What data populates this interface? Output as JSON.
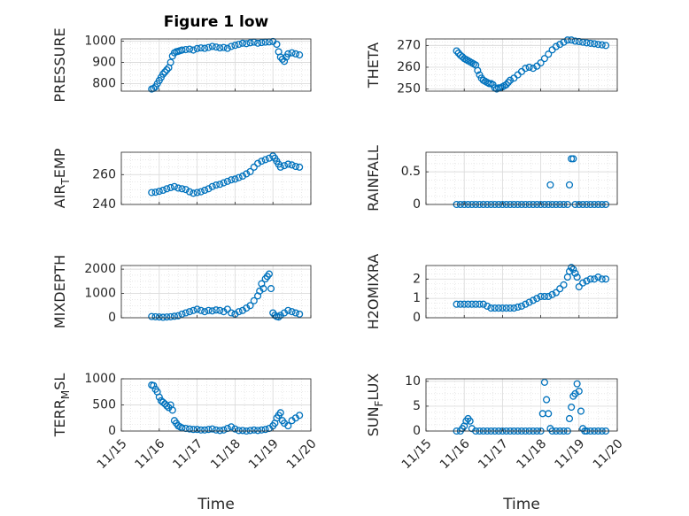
{
  "figure": {
    "title": "Figure 1 low"
  },
  "colors": {
    "marker": "#0072BD",
    "axis": "#262626",
    "grid": "#d9d9d9"
  },
  "chart_data": [
    {
      "type": "scatter",
      "ylabel": "PRESSURE",
      "title": "Figure 1 low",
      "xlabel": "",
      "xlim": [
        0,
        5
      ],
      "ylim": [
        765,
        1010
      ],
      "yticks": [
        800,
        900,
        1000
      ],
      "ytick_labels": [
        "800",
        "900",
        "1000"
      ],
      "xticks": [
        0,
        1,
        2,
        3,
        4,
        5
      ],
      "xtick_labels": [],
      "grid": true,
      "x": [
        0.8,
        0.85,
        0.9,
        0.95,
        1.0,
        1.05,
        1.1,
        1.15,
        1.2,
        1.25,
        1.3,
        1.35,
        1.4,
        1.45,
        1.5,
        1.55,
        1.6,
        1.7,
        1.8,
        1.9,
        2.0,
        2.1,
        2.2,
        2.3,
        2.4,
        2.5,
        2.6,
        2.7,
        2.8,
        2.9,
        3.0,
        3.1,
        3.2,
        3.3,
        3.4,
        3.5,
        3.6,
        3.7,
        3.8,
        3.9,
        4.0,
        4.1,
        4.15,
        4.2,
        4.25,
        4.3,
        4.35,
        4.4,
        4.5,
        4.6,
        4.7
      ],
      "y": [
        775,
        778,
        785,
        800,
        815,
        830,
        845,
        855,
        865,
        875,
        900,
        930,
        945,
        950,
        952,
        955,
        958,
        960,
        962,
        958,
        965,
        968,
        966,
        970,
        975,
        972,
        968,
        970,
        966,
        975,
        980,
        985,
        990,
        988,
        992,
        995,
        990,
        993,
        995,
        996,
        998,
        985,
        950,
        925,
        915,
        905,
        925,
        940,
        945,
        940,
        935
      ]
    },
    {
      "type": "scatter",
      "ylabel": "THETA",
      "xlabel": "",
      "xlim": [
        0,
        5
      ],
      "ylim": [
        249,
        273
      ],
      "yticks": [
        250,
        260,
        270
      ],
      "ytick_labels": [
        "250",
        "260",
        "270"
      ],
      "xticks": [
        0,
        1,
        2,
        3,
        4,
        5
      ],
      "xtick_labels": [],
      "grid": true,
      "x": [
        0.8,
        0.85,
        0.9,
        0.95,
        1.0,
        1.05,
        1.1,
        1.15,
        1.2,
        1.25,
        1.3,
        1.35,
        1.4,
        1.45,
        1.5,
        1.55,
        1.6,
        1.65,
        1.7,
        1.75,
        1.8,
        1.85,
        1.9,
        1.95,
        2.0,
        2.05,
        2.1,
        2.15,
        2.2,
        2.3,
        2.4,
        2.5,
        2.6,
        2.7,
        2.8,
        2.9,
        3.0,
        3.1,
        3.2,
        3.3,
        3.4,
        3.5,
        3.6,
        3.7,
        3.8,
        3.9,
        4.0,
        4.1,
        4.2,
        4.3,
        4.4,
        4.5,
        4.6,
        4.7
      ],
      "y": [
        267.5,
        266.5,
        265.5,
        264.8,
        264,
        263.5,
        263,
        262.5,
        262,
        261.5,
        261,
        258.5,
        256.5,
        255,
        254,
        253.5,
        253,
        252.5,
        252.5,
        252,
        250.5,
        250,
        250.5,
        250.5,
        251,
        251.5,
        252,
        253,
        254,
        255,
        256.5,
        258,
        259.5,
        260,
        259.5,
        260.5,
        262,
        264,
        266,
        268,
        269.5,
        270.5,
        271.5,
        272.5,
        272.5,
        272,
        271.8,
        271.5,
        271.2,
        271,
        270.8,
        270.5,
        270.3,
        270
      ]
    },
    {
      "type": "scatter",
      "ylabel": "AIR_TEMP",
      "xlabel": "",
      "xlim": [
        0,
        5
      ],
      "ylim": [
        240,
        275
      ],
      "yticks": [
        240,
        260
      ],
      "ytick_labels": [
        "240",
        "260"
      ],
      "xticks": [
        0,
        1,
        2,
        3,
        4,
        5
      ],
      "xtick_labels": [],
      "grid": true,
      "x": [
        0.8,
        0.9,
        1.0,
        1.1,
        1.2,
        1.3,
        1.4,
        1.5,
        1.6,
        1.7,
        1.8,
        1.9,
        2.0,
        2.1,
        2.2,
        2.3,
        2.4,
        2.5,
        2.6,
        2.7,
        2.8,
        2.9,
        3.0,
        3.1,
        3.2,
        3.3,
        3.4,
        3.5,
        3.6,
        3.7,
        3.8,
        3.9,
        4.0,
        4.05,
        4.1,
        4.15,
        4.2,
        4.3,
        4.4,
        4.5,
        4.6,
        4.7
      ],
      "y": [
        248,
        248.2,
        248.8,
        249.5,
        250.5,
        251.3,
        252,
        251,
        250.5,
        250,
        248.5,
        247.5,
        248,
        248.5,
        249.5,
        250.5,
        252,
        253,
        253.5,
        254.5,
        255.5,
        256.5,
        257,
        258,
        259,
        260.5,
        262,
        265,
        267.5,
        269,
        270,
        271,
        272.5,
        271,
        269,
        267,
        265,
        266,
        267,
        266.5,
        265.5,
        265
      ]
    },
    {
      "type": "scatter",
      "ylabel": "RAINFALL",
      "xlabel": "",
      "xlim": [
        0,
        5
      ],
      "ylim": [
        0,
        0.8
      ],
      "yticks": [
        0,
        0.5
      ],
      "ytick_labels": [
        "0",
        "0.5"
      ],
      "xticks": [
        0,
        1,
        2,
        3,
        4,
        5
      ],
      "xtick_labels": [],
      "grid": true,
      "x": [
        0.8,
        0.9,
        1.0,
        1.1,
        1.2,
        1.3,
        1.4,
        1.5,
        1.6,
        1.7,
        1.8,
        1.9,
        2.0,
        2.1,
        2.2,
        2.3,
        2.4,
        2.5,
        2.6,
        2.7,
        2.8,
        2.9,
        3.0,
        3.1,
        3.2,
        3.25,
        3.3,
        3.4,
        3.5,
        3.6,
        3.7,
        3.75,
        3.8,
        3.85,
        3.9,
        4.0,
        4.1,
        4.2,
        4.3,
        4.4,
        4.5,
        4.6,
        4.7
      ],
      "y": [
        0,
        0,
        0,
        0,
        0,
        0,
        0,
        0,
        0,
        0,
        0,
        0,
        0,
        0,
        0,
        0,
        0,
        0,
        0,
        0,
        0,
        0,
        0,
        0,
        0,
        0.3,
        0,
        0,
        0,
        0,
        0,
        0.3,
        0.7,
        0.7,
        0,
        0,
        0,
        0,
        0,
        0,
        0,
        0,
        0
      ]
    },
    {
      "type": "scatter",
      "ylabel": "MIXDEPTH",
      "xlabel": "",
      "xlim": [
        0,
        5
      ],
      "ylim": [
        0,
        2150
      ],
      "yticks": [
        0,
        1000,
        2000
      ],
      "ytick_labels": [
        "0",
        "1000",
        "2000"
      ],
      "xticks": [
        0,
        1,
        2,
        3,
        4,
        5
      ],
      "xtick_labels": [],
      "grid": true,
      "x": [
        0.8,
        0.9,
        1.0,
        1.1,
        1.2,
        1.3,
        1.4,
        1.5,
        1.6,
        1.7,
        1.8,
        1.9,
        2.0,
        2.1,
        2.2,
        2.3,
        2.4,
        2.5,
        2.6,
        2.7,
        2.8,
        2.9,
        3.0,
        3.1,
        3.2,
        3.3,
        3.4,
        3.5,
        3.6,
        3.65,
        3.7,
        3.75,
        3.8,
        3.85,
        3.9,
        3.95,
        4.0,
        4.05,
        4.1,
        4.15,
        4.2,
        4.3,
        4.4,
        4.5,
        4.6,
        4.7
      ],
      "y": [
        50,
        40,
        30,
        20,
        30,
        40,
        60,
        80,
        150,
        200,
        250,
        300,
        350,
        300,
        250,
        300,
        280,
        320,
        300,
        250,
        350,
        200,
        150,
        250,
        300,
        400,
        500,
        700,
        900,
        1100,
        1400,
        1200,
        1600,
        1700,
        1800,
        1200,
        200,
        100,
        50,
        30,
        100,
        200,
        300,
        250,
        200,
        150
      ]
    },
    {
      "type": "scatter",
      "ylabel": "H2OMIXRA",
      "xlabel": "",
      "xlim": [
        0,
        5
      ],
      "ylim": [
        0,
        2.7
      ],
      "yticks": [
        0,
        1,
        2
      ],
      "ytick_labels": [
        "0",
        "1",
        "2"
      ],
      "xticks": [
        0,
        1,
        2,
        3,
        4,
        5
      ],
      "xtick_labels": [],
      "grid": true,
      "x": [
        0.8,
        0.9,
        1.0,
        1.1,
        1.2,
        1.3,
        1.4,
        1.5,
        1.6,
        1.7,
        1.8,
        1.9,
        2.0,
        2.1,
        2.2,
        2.3,
        2.4,
        2.5,
        2.6,
        2.7,
        2.8,
        2.9,
        3.0,
        3.1,
        3.2,
        3.3,
        3.4,
        3.5,
        3.6,
        3.7,
        3.75,
        3.8,
        3.85,
        3.9,
        3.95,
        4.0,
        4.1,
        4.2,
        4.3,
        4.4,
        4.5,
        4.6,
        4.7
      ],
      "y": [
        0.7,
        0.7,
        0.7,
        0.7,
        0.7,
        0.7,
        0.7,
        0.7,
        0.6,
        0.5,
        0.5,
        0.5,
        0.5,
        0.5,
        0.5,
        0.5,
        0.55,
        0.6,
        0.7,
        0.8,
        0.9,
        1.0,
        1.1,
        1.1,
        1.1,
        1.2,
        1.3,
        1.5,
        1.7,
        2.1,
        2.4,
        2.6,
        2.5,
        2.3,
        2.1,
        1.6,
        1.8,
        1.9,
        2.0,
        2.0,
        2.1,
        2.0,
        2.0
      ]
    },
    {
      "type": "scatter",
      "ylabel": "TERR_MSL",
      "xlabel": "Time",
      "xlim": [
        0,
        5
      ],
      "ylim": [
        0,
        1000
      ],
      "yticks": [
        0,
        500,
        1000
      ],
      "ytick_labels": [
        "0",
        "500",
        "1000"
      ],
      "xticks": [
        0,
        1,
        2,
        3,
        4,
        5
      ],
      "xtick_labels": [
        "11/15",
        "11/16",
        "11/17",
        "11/18",
        "11/19",
        "11/20"
      ],
      "grid": true,
      "x": [
        0.8,
        0.85,
        0.9,
        0.95,
        1.0,
        1.05,
        1.1,
        1.15,
        1.2,
        1.25,
        1.3,
        1.35,
        1.4,
        1.45,
        1.5,
        1.55,
        1.6,
        1.7,
        1.8,
        1.9,
        2.0,
        2.1,
        2.2,
        2.3,
        2.4,
        2.5,
        2.6,
        2.7,
        2.8,
        2.9,
        3.0,
        3.1,
        3.2,
        3.3,
        3.4,
        3.5,
        3.6,
        3.7,
        3.8,
        3.9,
        4.0,
        4.05,
        4.1,
        4.15,
        4.2,
        4.25,
        4.3,
        4.4,
        4.5,
        4.6,
        4.7
      ],
      "y": [
        880,
        870,
        800,
        750,
        650,
        580,
        550,
        520,
        480,
        450,
        500,
        400,
        200,
        150,
        100,
        80,
        60,
        50,
        40,
        30,
        30,
        20,
        20,
        30,
        40,
        20,
        10,
        20,
        50,
        80,
        40,
        10,
        10,
        0,
        10,
        20,
        10,
        20,
        30,
        50,
        100,
        150,
        250,
        300,
        350,
        200,
        150,
        100,
        200,
        250,
        300
      ]
    },
    {
      "type": "scatter",
      "ylabel": "SUN_FLUX",
      "xlabel": "Time",
      "xlim": [
        0,
        5
      ],
      "ylim": [
        0,
        10.5
      ],
      "yticks": [
        0,
        5,
        10
      ],
      "ytick_labels": [
        "0",
        "5",
        "10"
      ],
      "xticks": [
        0,
        1,
        2,
        3,
        4,
        5
      ],
      "xtick_labels": [
        "11/15",
        "11/16",
        "11/17",
        "11/18",
        "11/19",
        "11/20"
      ],
      "grid": true,
      "x": [
        0.8,
        0.9,
        0.95,
        1.0,
        1.05,
        1.1,
        1.15,
        1.2,
        1.3,
        1.4,
        1.5,
        1.6,
        1.7,
        1.8,
        1.9,
        2.0,
        2.1,
        2.2,
        2.3,
        2.4,
        2.5,
        2.6,
        2.7,
        2.8,
        2.9,
        3.0,
        3.05,
        3.1,
        3.15,
        3.2,
        3.25,
        3.3,
        3.4,
        3.5,
        3.6,
        3.7,
        3.75,
        3.8,
        3.85,
        3.9,
        3.95,
        4.0,
        4.05,
        4.1,
        4.15,
        4.2,
        4.3,
        4.4,
        4.5,
        4.6,
        4.7
      ],
      "y": [
        0,
        0,
        0.5,
        1.0,
        2.0,
        2.5,
        2.0,
        0.5,
        0,
        0,
        0,
        0,
        0,
        0,
        0,
        0,
        0,
        0,
        0,
        0,
        0,
        0,
        0,
        0,
        0,
        0,
        3.5,
        9.8,
        6.3,
        3.5,
        0.5,
        0,
        0,
        0,
        0,
        0,
        2.5,
        4.8,
        7.0,
        7.5,
        9.5,
        8.0,
        4.0,
        0.5,
        0,
        0,
        0,
        0,
        0,
        0,
        0
      ]
    }
  ]
}
